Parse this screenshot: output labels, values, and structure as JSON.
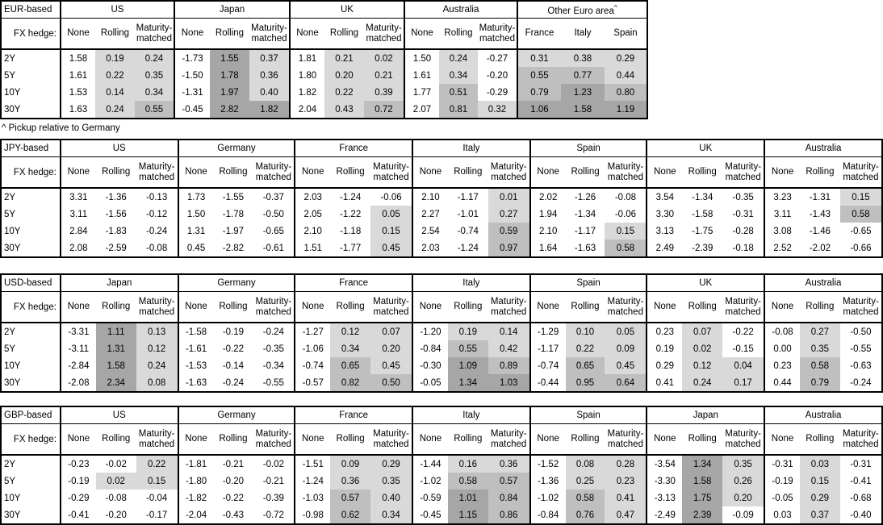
{
  "page": {
    "footnote": "^ Pickup relative to Germany",
    "hedge_label": "FX hedge:",
    "row_labels": [
      "2Y",
      "5Y",
      "10Y",
      "30Y"
    ],
    "standard_cols": [
      "None",
      "Rolling",
      "Maturity-matched"
    ]
  },
  "colors": {
    "shade_light": "#d9d9d9",
    "shade_medium": "#bfbfbf",
    "shade_dark": "#a6a6a6",
    "border": "#000000",
    "background": "#ffffff"
  },
  "shading_rule": {
    "applies_to": "columns other than None",
    "light_range": "0 to 0.5",
    "medium_range": "0.5 to 1.0",
    "dark_range": "1.0 and above"
  },
  "tables": [
    {
      "base": "EUR-based",
      "groups": [
        {
          "name": "US",
          "sup": "",
          "cols": [
            "None",
            "Rolling",
            "Maturity-matched"
          ],
          "rows": [
            [
              "1.58",
              "0.19",
              "0.24"
            ],
            [
              "1.61",
              "0.22",
              "0.35"
            ],
            [
              "1.53",
              "0.14",
              "0.34"
            ],
            [
              "1.63",
              "0.24",
              "0.55"
            ]
          ]
        },
        {
          "name": "Japan",
          "sup": "",
          "cols": [
            "None",
            "Rolling",
            "Maturity-matched"
          ],
          "rows": [
            [
              "-1.73",
              "1.55",
              "0.37"
            ],
            [
              "-1.50",
              "1.78",
              "0.36"
            ],
            [
              "-1.31",
              "1.97",
              "0.40"
            ],
            [
              "-0.45",
              "2.82",
              "1.82"
            ]
          ]
        },
        {
          "name": "UK",
          "sup": "",
          "cols": [
            "None",
            "Rolling",
            "Maturity-matched"
          ],
          "rows": [
            [
              "1.81",
              "0.21",
              "0.02"
            ],
            [
              "1.80",
              "0.20",
              "0.21"
            ],
            [
              "1.82",
              "0.22",
              "0.39"
            ],
            [
              "2.04",
              "0.43",
              "0.72"
            ]
          ]
        },
        {
          "name": "Australia",
          "sup": "",
          "cols": [
            "None",
            "Rolling",
            "Maturity-matched"
          ],
          "rows": [
            [
              "1.50",
              "0.24",
              "-0.27"
            ],
            [
              "1.61",
              "0.34",
              "-0.20"
            ],
            [
              "1.77",
              "0.51",
              "-0.29"
            ],
            [
              "2.07",
              "0.81",
              "0.32"
            ]
          ]
        },
        {
          "name": "Other Euro area",
          "sup": "^",
          "cols": [
            "France",
            "Italy",
            "Spain"
          ],
          "rows": [
            [
              "0.31",
              "0.38",
              "0.29"
            ],
            [
              "0.55",
              "0.77",
              "0.44"
            ],
            [
              "0.79",
              "1.23",
              "0.80"
            ],
            [
              "1.06",
              "1.58",
              "1.19"
            ]
          ]
        }
      ]
    },
    {
      "base": "JPY-based",
      "groups": [
        {
          "name": "US",
          "sup": "",
          "cols": [
            "None",
            "Rolling",
            "Maturity-matched"
          ],
          "rows": [
            [
              "3.31",
              "-1.36",
              "-0.13"
            ],
            [
              "3.11",
              "-1.56",
              "-0.12"
            ],
            [
              "2.84",
              "-1.83",
              "-0.24"
            ],
            [
              "2.08",
              "-2.59",
              "-0.08"
            ]
          ]
        },
        {
          "name": "Germany",
          "sup": "",
          "cols": [
            "None",
            "Rolling",
            "Maturity-matched"
          ],
          "rows": [
            [
              "1.73",
              "-1.55",
              "-0.37"
            ],
            [
              "1.50",
              "-1.78",
              "-0.50"
            ],
            [
              "1.31",
              "-1.97",
              "-0.65"
            ],
            [
              "0.45",
              "-2.82",
              "-0.61"
            ]
          ]
        },
        {
          "name": "France",
          "sup": "",
          "cols": [
            "None",
            "Rolling",
            "Maturity-matched"
          ],
          "rows": [
            [
              "2.03",
              "-1.24",
              "-0.06"
            ],
            [
              "2.05",
              "-1.22",
              "0.05"
            ],
            [
              "2.10",
              "-1.18",
              "0.15"
            ],
            [
              "1.51",
              "-1.77",
              "0.45"
            ]
          ]
        },
        {
          "name": "Italy",
          "sup": "",
          "cols": [
            "None",
            "Rolling",
            "Maturity-matched"
          ],
          "rows": [
            [
              "2.10",
              "-1.17",
              "0.01"
            ],
            [
              "2.27",
              "-1.01",
              "0.27"
            ],
            [
              "2.54",
              "-0.74",
              "0.59"
            ],
            [
              "2.03",
              "-1.24",
              "0.97"
            ]
          ]
        },
        {
          "name": "Spain",
          "sup": "",
          "cols": [
            "None",
            "Rolling",
            "Maturity-matched"
          ],
          "rows": [
            [
              "2.02",
              "-1.26",
              "-0.08"
            ],
            [
              "1.94",
              "-1.34",
              "-0.06"
            ],
            [
              "2.10",
              "-1.17",
              "0.15"
            ],
            [
              "1.64",
              "-1.63",
              "0.58"
            ]
          ]
        },
        {
          "name": "UK",
          "sup": "",
          "cols": [
            "None",
            "Rolling",
            "Maturity-matched"
          ],
          "rows": [
            [
              "3.54",
              "-1.34",
              "-0.35"
            ],
            [
              "3.30",
              "-1.58",
              "-0.31"
            ],
            [
              "3.13",
              "-1.75",
              "-0.28"
            ],
            [
              "2.49",
              "-2.39",
              "-0.18"
            ]
          ]
        },
        {
          "name": "Australia",
          "sup": "",
          "cols": [
            "None",
            "Rolling",
            "Maturity-matched"
          ],
          "rows": [
            [
              "3.23",
              "-1.31",
              "0.15"
            ],
            [
              "3.11",
              "-1.43",
              "0.58"
            ],
            [
              "3.08",
              "-1.46",
              "-0.65"
            ],
            [
              "2.52",
              "-2.02",
              "-0.66"
            ]
          ]
        }
      ]
    },
    {
      "base": "USD-based",
      "groups": [
        {
          "name": "Japan",
          "sup": "",
          "cols": [
            "None",
            "Rolling",
            "Maturity-matched"
          ],
          "rows": [
            [
              "-3.31",
              "1.11",
              "0.13"
            ],
            [
              "-3.11",
              "1.31",
              "0.12"
            ],
            [
              "-2.84",
              "1.58",
              "0.24"
            ],
            [
              "-2.08",
              "2.34",
              "0.08"
            ]
          ]
        },
        {
          "name": "Germany",
          "sup": "",
          "cols": [
            "None",
            "Rolling",
            "Maturity-matched"
          ],
          "rows": [
            [
              "-1.58",
              "-0.19",
              "-0.24"
            ],
            [
              "-1.61",
              "-0.22",
              "-0.35"
            ],
            [
              "-1.53",
              "-0.14",
              "-0.34"
            ],
            [
              "-1.63",
              "-0.24",
              "-0.55"
            ]
          ]
        },
        {
          "name": "France",
          "sup": "",
          "cols": [
            "None",
            "Rolling",
            "Maturity-matched"
          ],
          "rows": [
            [
              "-1.27",
              "0.12",
              "0.07"
            ],
            [
              "-1.06",
              "0.34",
              "0.20"
            ],
            [
              "-0.74",
              "0.65",
              "0.45"
            ],
            [
              "-0.57",
              "0.82",
              "0.50"
            ]
          ]
        },
        {
          "name": "Italy",
          "sup": "",
          "cols": [
            "None",
            "Rolling",
            "Maturity-matched"
          ],
          "rows": [
            [
              "-1.20",
              "0.19",
              "0.14"
            ],
            [
              "-0.84",
              "0.55",
              "0.42"
            ],
            [
              "-0.30",
              "1.09",
              "0.89"
            ],
            [
              "-0.05",
              "1.34",
              "1.03"
            ]
          ]
        },
        {
          "name": "Spain",
          "sup": "",
          "cols": [
            "None",
            "Rolling",
            "Maturity-matched"
          ],
          "rows": [
            [
              "-1.29",
              "0.10",
              "0.05"
            ],
            [
              "-1.17",
              "0.22",
              "0.09"
            ],
            [
              "-0.74",
              "0.65",
              "0.45"
            ],
            [
              "-0.44",
              "0.95",
              "0.64"
            ]
          ]
        },
        {
          "name": "UK",
          "sup": "",
          "cols": [
            "None",
            "Rolling",
            "Maturity-matched"
          ],
          "rows": [
            [
              "0.23",
              "0.07",
              "-0.22"
            ],
            [
              "0.19",
              "0.02",
              "-0.15"
            ],
            [
              "0.29",
              "0.12",
              "0.04"
            ],
            [
              "0.41",
              "0.24",
              "0.17"
            ]
          ]
        },
        {
          "name": "Australia",
          "sup": "",
          "cols": [
            "None",
            "Rolling",
            "Maturity-matched"
          ],
          "rows": [
            [
              "-0.08",
              "0.27",
              "-0.50"
            ],
            [
              "0.00",
              "0.35",
              "-0.55"
            ],
            [
              "0.23",
              "0.58",
              "-0.63"
            ],
            [
              "0.44",
              "0.79",
              "-0.24"
            ]
          ]
        }
      ]
    },
    {
      "base": "GBP-based",
      "groups": [
        {
          "name": "US",
          "sup": "",
          "cols": [
            "None",
            "Rolling",
            "Maturity-matched"
          ],
          "rows": [
            [
              "-0.23",
              "-0.02",
              "0.22"
            ],
            [
              "-0.19",
              "0.02",
              "0.15"
            ],
            [
              "-0.29",
              "-0.08",
              "-0.04"
            ],
            [
              "-0.41",
              "-0.20",
              "-0.17"
            ]
          ]
        },
        {
          "name": "Germany",
          "sup": "",
          "cols": [
            "None",
            "Rolling",
            "Maturity-matched"
          ],
          "rows": [
            [
              "-1.81",
              "-0.21",
              "-0.02"
            ],
            [
              "-1.80",
              "-0.20",
              "-0.21"
            ],
            [
              "-1.82",
              "-0.22",
              "-0.39"
            ],
            [
              "-2.04",
              "-0.43",
              "-0.72"
            ]
          ]
        },
        {
          "name": "France",
          "sup": "",
          "cols": [
            "None",
            "Rolling",
            "Maturity-matched"
          ],
          "rows": [
            [
              "-1.51",
              "0.09",
              "0.29"
            ],
            [
              "-1.24",
              "0.36",
              "0.35"
            ],
            [
              "-1.03",
              "0.57",
              "0.40"
            ],
            [
              "-0.98",
              "0.62",
              "0.34"
            ]
          ]
        },
        {
          "name": "Italy",
          "sup": "",
          "cols": [
            "None",
            "Rolling",
            "Maturity-matched"
          ],
          "rows": [
            [
              "-1.44",
              "0.16",
              "0.36"
            ],
            [
              "-1.02",
              "0.58",
              "0.57"
            ],
            [
              "-0.59",
              "1.01",
              "0.84"
            ],
            [
              "-0.45",
              "1.15",
              "0.86"
            ]
          ]
        },
        {
          "name": "Spain",
          "sup": "",
          "cols": [
            "None",
            "Rolling",
            "Maturity-matched"
          ],
          "rows": [
            [
              "-1.52",
              "0.08",
              "0.28"
            ],
            [
              "-1.36",
              "0.25",
              "0.23"
            ],
            [
              "-1.02",
              "0.58",
              "0.41"
            ],
            [
              "-0.84",
              "0.76",
              "0.47"
            ]
          ]
        },
        {
          "name": "Japan",
          "sup": "",
          "cols": [
            "None",
            "Rolling",
            "Maturity-matched"
          ],
          "rows": [
            [
              "-3.54",
              "1.34",
              "0.35"
            ],
            [
              "-3.30",
              "1.58",
              "0.26"
            ],
            [
              "-3.13",
              "1.75",
              "0.20"
            ],
            [
              "-2.49",
              "2.39",
              "-0.09"
            ]
          ]
        },
        {
          "name": "Australia",
          "sup": "",
          "cols": [
            "None",
            "Rolling",
            "Maturity-matched"
          ],
          "rows": [
            [
              "-0.31",
              "0.03",
              "-0.31"
            ],
            [
              "-0.19",
              "0.15",
              "-0.41"
            ],
            [
              "-0.05",
              "0.29",
              "-0.68"
            ],
            [
              "0.03",
              "0.37",
              "-0.40"
            ]
          ]
        }
      ]
    }
  ]
}
